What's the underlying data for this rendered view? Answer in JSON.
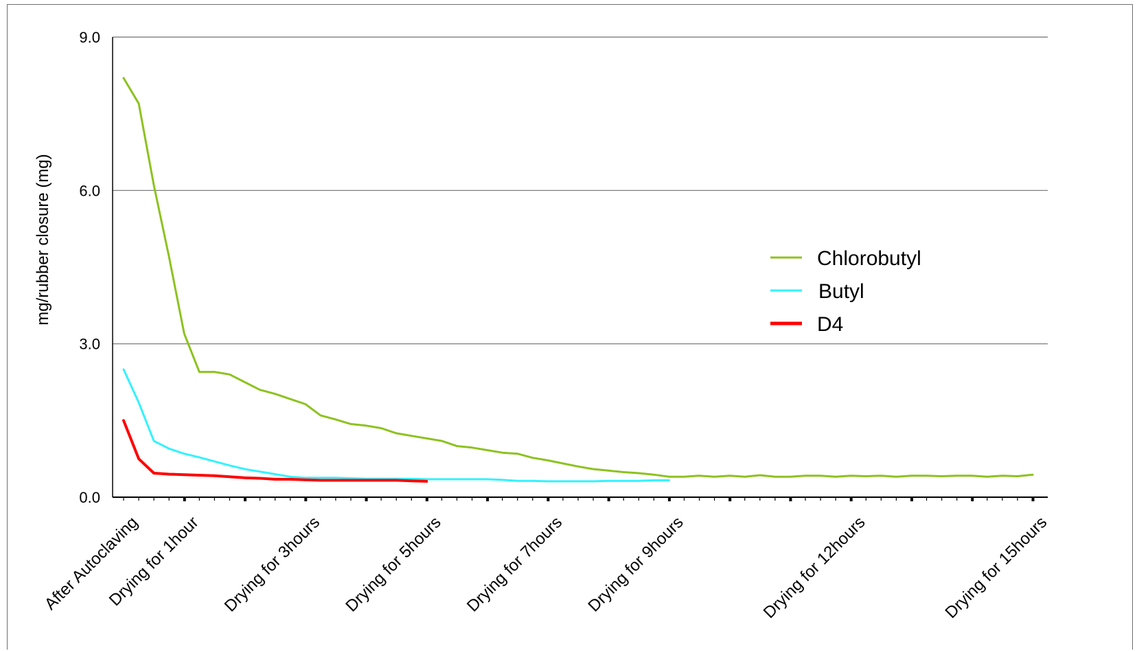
{
  "chart_data": {
    "type": "line",
    "title": "",
    "xlabel": "",
    "ylabel": "mg/rubber closure (mg)",
    "ylim": [
      0,
      9
    ],
    "yticks": [
      "0.0",
      "3.0",
      "6.0",
      "9.0"
    ],
    "grid": true,
    "legend_position": "right",
    "x_count": 61,
    "x_tick_labels": [
      {
        "index": 0,
        "label": "After Autoclaving"
      },
      {
        "index": 4,
        "label": "Drying for 1hour"
      },
      {
        "index": 12,
        "label": "Drying for 3hours"
      },
      {
        "index": 20,
        "label": "Drying for 5hours"
      },
      {
        "index": 28,
        "label": "Drying for 7hours"
      },
      {
        "index": 36,
        "label": "Drying for 9hours"
      },
      {
        "index": 48,
        "label": "Drying for 12hours"
      },
      {
        "index": 60,
        "label": "Drying for 15hours"
      }
    ],
    "series": [
      {
        "name": "Chlorobutyl",
        "color": "#8dc21f",
        "values": [
          8.2,
          7.7,
          6.1,
          4.7,
          3.2,
          2.45,
          2.45,
          2.4,
          2.25,
          2.1,
          2.02,
          1.92,
          1.82,
          1.6,
          1.52,
          1.43,
          1.4,
          1.35,
          1.25,
          1.2,
          1.15,
          1.1,
          1.0,
          0.97,
          0.92,
          0.87,
          0.85,
          0.77,
          0.72,
          0.66,
          0.6,
          0.55,
          0.52,
          0.49,
          0.47,
          0.44,
          0.4,
          0.4,
          0.42,
          0.4,
          0.42,
          0.4,
          0.43,
          0.4,
          0.4,
          0.42,
          0.42,
          0.4,
          0.42,
          0.41,
          0.42,
          0.4,
          0.42,
          0.42,
          0.41,
          0.42,
          0.42,
          0.4,
          0.42,
          0.41,
          0.44
        ]
      },
      {
        "name": "Butyl",
        "color": "#33f2ff",
        "values": [
          2.5,
          1.85,
          1.1,
          0.95,
          0.85,
          0.78,
          0.7,
          0.62,
          0.55,
          0.5,
          0.45,
          0.4,
          0.38,
          0.38,
          0.38,
          0.37,
          0.36,
          0.36,
          0.36,
          0.36,
          0.35,
          0.35,
          0.35,
          0.35,
          0.35,
          0.34,
          0.32,
          0.32,
          0.31,
          0.31,
          0.31,
          0.31,
          0.32,
          0.32,
          0.32,
          0.33,
          0.33
        ]
      },
      {
        "name": "D4",
        "color": "#ff0000",
        "values": [
          1.5,
          0.75,
          0.47,
          0.45,
          0.44,
          0.43,
          0.42,
          0.4,
          0.38,
          0.37,
          0.35,
          0.35,
          0.34,
          0.33,
          0.33,
          0.33,
          0.33,
          0.33,
          0.33,
          0.32,
          0.31
        ]
      }
    ]
  }
}
